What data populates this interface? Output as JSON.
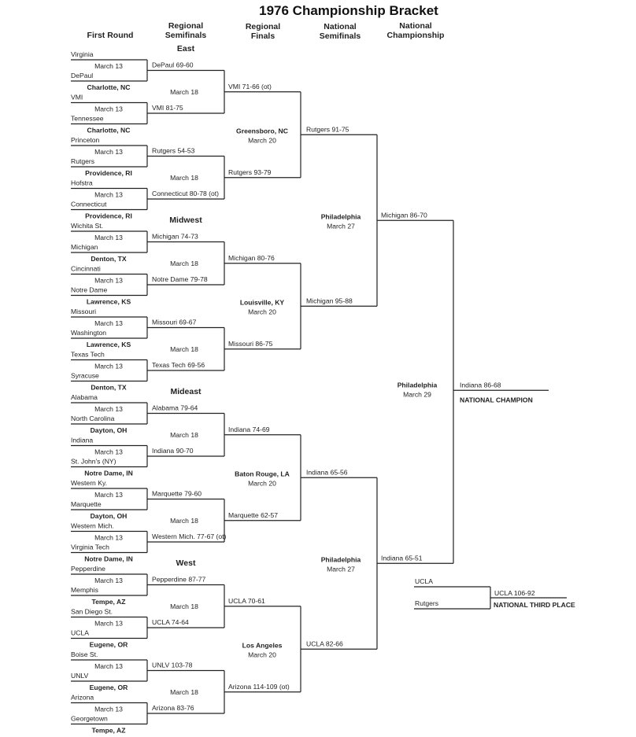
{
  "title": "1976 Championship Bracket",
  "headers": {
    "first_round": [
      "First Round"
    ],
    "regional_semifinals": [
      "Regional",
      "Semifinals"
    ],
    "regional_finals": [
      "Regional",
      "Finals"
    ],
    "national_semifinals": [
      "National",
      "Semifinals"
    ],
    "national_championship": [
      "National",
      "Championship"
    ]
  },
  "regions": [
    "East",
    "Midwest",
    "Mideast",
    "West"
  ],
  "first_round": [
    {
      "teams": [
        "Virginia",
        "DePaul"
      ],
      "date": "March 13",
      "site": "Charlotte, NC"
    },
    {
      "teams": [
        "VMI",
        "Tennessee"
      ],
      "date": "March 13",
      "site": "Charlotte, NC"
    },
    {
      "teams": [
        "Princeton",
        "Rutgers"
      ],
      "date": "March 13",
      "site": "Providence, RI"
    },
    {
      "teams": [
        "Hofstra",
        "Connecticut"
      ],
      "date": "March 13",
      "site": "Providence, RI"
    },
    {
      "teams": [
        "Wichita St.",
        "Michigan"
      ],
      "date": "March 13",
      "site": "Denton, TX"
    },
    {
      "teams": [
        "Cincinnati",
        "Notre Dame"
      ],
      "date": "March 13",
      "site": "Lawrence, KS"
    },
    {
      "teams": [
        "Missouri",
        "Washington"
      ],
      "date": "March 13",
      "site": "Lawrence, KS"
    },
    {
      "teams": [
        "Texas Tech",
        "Syracuse"
      ],
      "date": "March 13",
      "site": "Denton, TX"
    },
    {
      "teams": [
        "Alabama",
        "North Carolina"
      ],
      "date": "March 13",
      "site": "Dayton, OH"
    },
    {
      "teams": [
        "Indiana",
        "St. John's (NY)"
      ],
      "date": "March 13",
      "site": "Notre Dame, IN"
    },
    {
      "teams": [
        "Western Ky.",
        "Marquette"
      ],
      "date": "March 13",
      "site": "Dayton, OH"
    },
    {
      "teams": [
        "Western Mich.",
        "Virginia Tech"
      ],
      "date": "March 13",
      "site": "Notre Dame, IN"
    },
    {
      "teams": [
        "Pepperdine",
        "Memphis"
      ],
      "date": "March 13",
      "site": "Tempe, AZ"
    },
    {
      "teams": [
        "San Diego St.",
        "UCLA"
      ],
      "date": "March 13",
      "site": "Eugene, OR"
    },
    {
      "teams": [
        "Boise St.",
        "UNLV"
      ],
      "date": "March 13",
      "site": "Eugene, OR"
    },
    {
      "teams": [
        "Arizona",
        "Georgetown"
      ],
      "date": "March 13",
      "site": "Tempe, AZ"
    }
  ],
  "regional_semifinals": {
    "results": [
      "DePaul 69-60",
      "VMI 81-75",
      "Rutgers 54-53",
      "Connecticut 80-78 (ot)",
      "Michigan 74-73",
      "Notre Dame 79-78",
      "Missouri 69-67",
      "Texas Tech 69-56",
      "Alabama 79-64",
      "Indiana 90-70",
      "Marquette 79-60",
      "Western Mich. 77-67 (ot)",
      "Pepperdine 87-77",
      "UCLA 74-64",
      "UNLV 103-78",
      "Arizona 83-76"
    ],
    "dates": [
      "March 18",
      "March 18",
      "March 18",
      "March 18",
      "March 18",
      "March 18",
      "March 18",
      "March 18"
    ]
  },
  "regional_finals": {
    "results": [
      "VMI 71-66 (ot)",
      "Rutgers 93-79",
      "Michigan 80-76",
      "Missouri 86-75",
      "Indiana 74-69",
      "Marquette 62-57",
      "UCLA 70-61",
      "Arizona 114-109 (ot)"
    ],
    "sites": [
      {
        "site": "Greensboro, NC",
        "date": "March 20"
      },
      {
        "site": "Louisville, KY",
        "date": "March 20"
      },
      {
        "site": "Baton Rouge, LA",
        "date": "March 20"
      },
      {
        "site": "Los Angeles",
        "date": "March 20"
      }
    ]
  },
  "national_semifinals": {
    "results": [
      "Rutgers 91-75",
      "Michigan 95-88",
      "Indiana 65-56",
      "UCLA 82-66"
    ],
    "sites": [
      {
        "site": "Philadelphia",
        "date": "March 27"
      },
      {
        "site": "Philadelphia",
        "date": "March 27"
      }
    ]
  },
  "national_championship": {
    "results": [
      "Michigan 86-70",
      "Indiana 65-51"
    ],
    "site": {
      "site": "Philadelphia",
      "date": "March 29"
    },
    "champion_result": "Indiana 86-68",
    "champion_label": "NATIONAL CHAMPION"
  },
  "third_place": {
    "teams": [
      "UCLA",
      "Rutgers"
    ],
    "result": "UCLA 106-92",
    "label": "NATIONAL THIRD PLACE"
  }
}
